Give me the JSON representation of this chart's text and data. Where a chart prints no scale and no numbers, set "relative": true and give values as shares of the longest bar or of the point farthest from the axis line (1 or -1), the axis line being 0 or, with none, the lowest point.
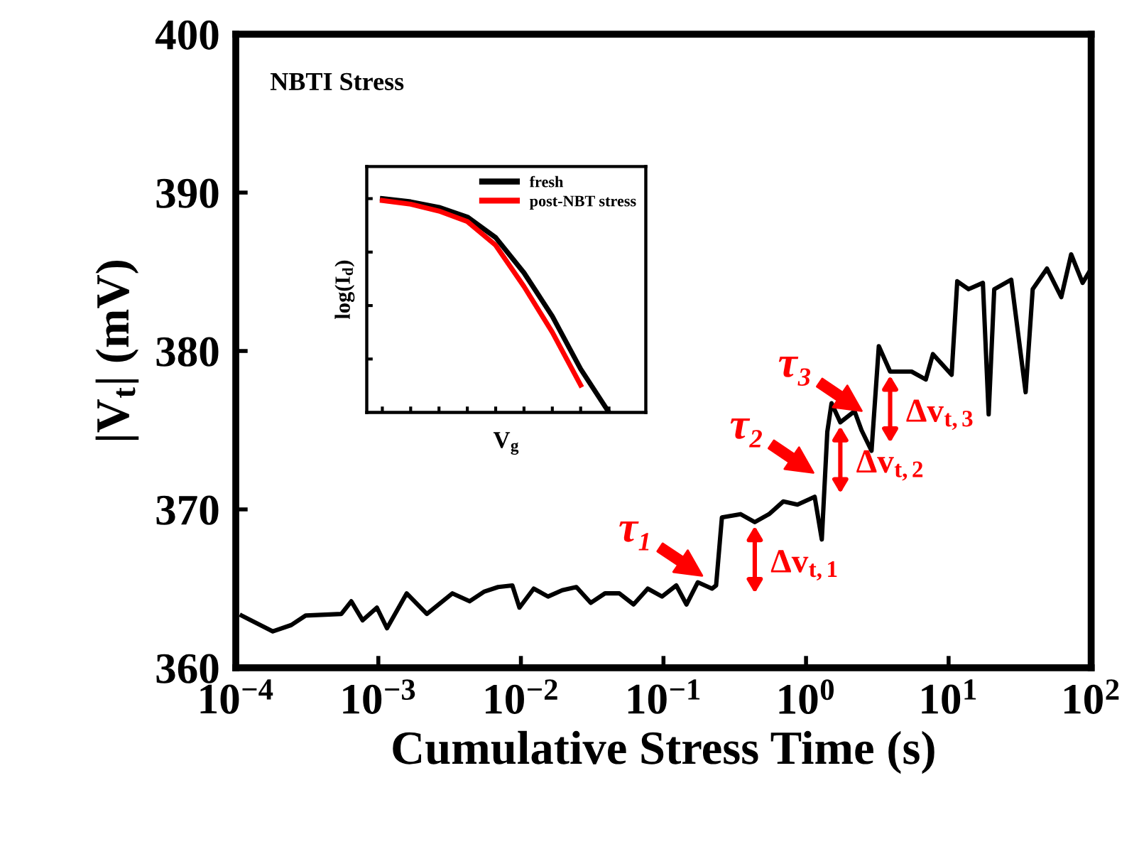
{
  "chart_data": [
    {
      "type": "line",
      "xlabel": "Cumulative Stress Time (s)",
      "ylabel": "|V$_{t}$| (mV)",
      "log": "x",
      "xlim": [
        0.0001,
        100
      ],
      "ylim": [
        360,
        400
      ],
      "xticks": [
        {
          "value": 0.0001,
          "label": "10$^{−4}$"
        },
        {
          "value": 0.001,
          "label": "10$^{−3}$"
        },
        {
          "value": 0.01,
          "label": "10$^{−2}$"
        },
        {
          "value": 0.1,
          "label": "10$^{−1}$"
        },
        {
          "value": 1,
          "label": "10$^{0}$"
        },
        {
          "value": 10,
          "label": "10$^{1}$"
        },
        {
          "value": 100,
          "label": "10$^{2}$"
        }
      ],
      "yticks": [
        360,
        370,
        380,
        390,
        400
      ],
      "grid": false,
      "legend": false,
      "series": [
        {
          "color": "#000000",
          "x": [
            0.00011,
            0.000182,
            0.000245,
            0.000309,
            0.00055,
            0.000646,
            0.000776,
            0.000977,
            0.00115,
            0.00158,
            0.00219,
            0.00331,
            0.00437,
            0.0055,
            0.00692,
            0.00871,
            0.00977,
            0.0123,
            0.0155,
            0.0195,
            0.0245,
            0.0309,
            0.0389,
            0.049,
            0.0617,
            0.0776,
            0.0977,
            0.123,
            0.145,
            0.174,
            0.219,
            0.234,
            0.257,
            0.347,
            0.437,
            0.55,
            0.692,
            0.871,
            1.15,
            1.29,
            1.41,
            1.51,
            1.74,
            2.19,
            2.45,
            2.88,
            3.24,
            3.89,
            5.5,
            6.92,
            7.76,
            10.5,
            11.5,
            13.8,
            17.4,
            19.1,
            20.9,
            27.5,
            34.7,
            38.9,
            49,
            61.7,
            72.4,
            87.1,
            100
          ],
          "values": [
            363.3,
            362.3,
            362.7,
            363.3,
            363.4,
            364.2,
            363.0,
            363.8,
            362.5,
            364.7,
            363.4,
            364.7,
            364.2,
            364.8,
            365.1,
            365.2,
            363.8,
            365.0,
            364.5,
            364.9,
            365.1,
            364.1,
            364.7,
            364.7,
            364.0,
            365.0,
            364.5,
            365.2,
            364.0,
            365.4,
            365.0,
            365.2,
            369.5,
            369.7,
            369.2,
            369.7,
            370.5,
            370.3,
            370.8,
            368.1,
            374.9,
            376.7,
            375.5,
            376.2,
            375.0,
            373.7,
            380.3,
            378.7,
            378.7,
            378.2,
            379.8,
            378.5,
            384.4,
            383.9,
            384.3,
            376.0,
            383.9,
            384.5,
            377.4,
            383.9,
            385.2,
            383.4,
            386.1,
            384.3,
            385.2
          ]
        }
      ],
      "annotations": [
        "NBTI Stress",
        {
          "text": "τ₁",
          "x": 0.219,
          "y": 365.4
        },
        {
          "text": "τ₂",
          "x": 1.32,
          "y": 371.9
        },
        {
          "text": "τ₃",
          "x": 2.88,
          "y": 375.8
        },
        {
          "text": "Δv$_{t,1}$",
          "x": 0.437,
          "y": 369.2
        },
        {
          "text": "Δv$_{t,2}$",
          "x": 1.74,
          "y": 375.5
        },
        {
          "text": "Δv$_{t,3}$",
          "x": 3.89,
          "y": 378.7
        }
      ]
    },
    {
      "type": "line",
      "relative": true,
      "xlabel": "V$_{g}$",
      "ylabel": "log(I$_{d}$)",
      "tick_labels": false,
      "legend": "top right",
      "grid": false,
      "categories": [
        null,
        null,
        null,
        null,
        null,
        null,
        null,
        null,
        null
      ],
      "series": [
        {
          "name": "fresh",
          "color": "#000000",
          "values": [
            1,
            0.985,
            0.959,
            0.914,
            0.818,
            0.653,
            0.45,
            0.203,
            0
          ]
        },
        {
          "name": "post-NBT stress",
          "color": "#ff0000",
          "values": [
            0.991,
            0.974,
            0.942,
            0.893,
            0.782,
            0.589,
            0.375,
            0.128,
            null
          ]
        }
      ]
    }
  ]
}
